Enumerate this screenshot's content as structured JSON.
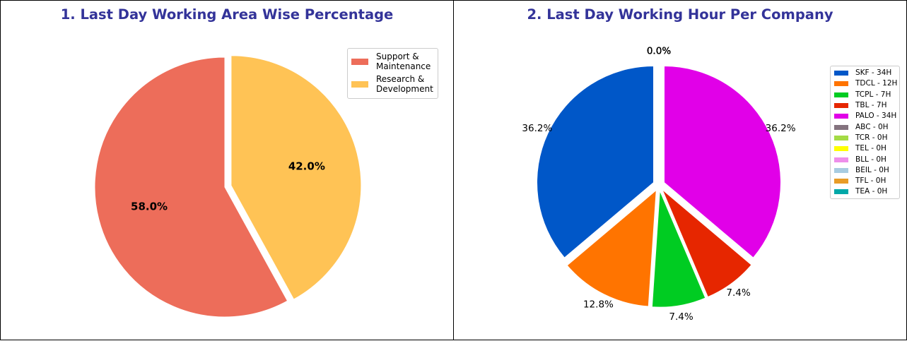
{
  "chart_data": [
    {
      "type": "pie",
      "title": "1. Last Day Working Area Wise Percentage",
      "labels": [
        "Support & Maintenance",
        "Research & Development"
      ],
      "legend_labels": [
        "Support &\nMaintenance",
        "Research &\nDevelopment"
      ],
      "values": [
        58.0,
        42.0
      ],
      "pct_labels": [
        "58.0%",
        "42.0%"
      ],
      "colors": [
        "#ED6D5A",
        "#FFC355"
      ],
      "explode": [
        0,
        0.05
      ],
      "start_angle_deg": 90,
      "legend_position": "top-right"
    },
    {
      "type": "pie",
      "title": "2. Last Day Working Hour Per Company",
      "labels": [
        "SKF - 34H",
        "TDCL - 12H",
        "TCPL - 7H",
        "TBL - 7H",
        "PALO - 34H",
        "ABC - 0H",
        "TCR - 0H",
        "TEL - 0H",
        "BLL - 0H",
        "BEIL - 0H",
        "TFL - 0H",
        "TEA - 0H"
      ],
      "values": [
        34,
        12,
        7,
        7,
        34,
        0,
        0,
        0,
        0,
        0,
        0,
        0
      ],
      "pct_labels": [
        "36.2%",
        "12.8%",
        "7.4%",
        "7.4%",
        "36.2%",
        "0.0%",
        "0.0%",
        "0.0%",
        "0.0%",
        "0.0%",
        "0.0%",
        "0.0%"
      ],
      "colors": [
        "#0057C8",
        "#FF7400",
        "#00CC22",
        "#E62600",
        "#E100E8",
        "#84737E",
        "#A4DB45",
        "#FFFF00",
        "#EE8FEA",
        "#A8CCE1",
        "#E89C27",
        "#00A8A8"
      ],
      "explode": [
        0.05,
        0.05,
        0.05,
        0.05,
        0.05,
        0.05,
        0.05,
        0.05,
        0.05,
        0.05,
        0.05,
        0.05
      ],
      "start_angle_deg": 90,
      "legend_position": "right"
    }
  ]
}
